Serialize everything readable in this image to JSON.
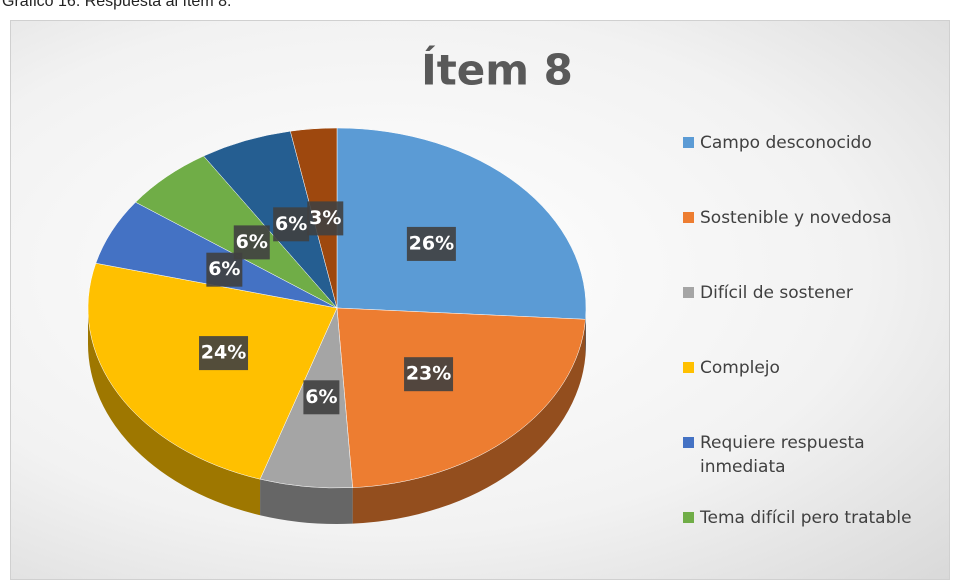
{
  "caption": "Gráfico 16. Respuesta al ítem 8.",
  "chart_data": {
    "type": "pie",
    "title": "Ítem 8",
    "categories": [
      "Campo desconocido",
      "Sostenible y novedosa",
      "Difícil de sostener",
      "Complejo",
      "Requiere respuesta inmediata",
      "Tema difícil pero tratable",
      null,
      null
    ],
    "values": [
      26,
      23,
      6,
      24,
      6,
      6,
      6,
      3
    ],
    "value_labels": [
      "26%",
      "23%",
      "6%",
      "24%",
      "6%",
      "6%",
      "6%",
      "3%"
    ],
    "colors": [
      "#5b9bd5",
      "#ed7d31",
      "#a5a5a5",
      "#ffc000",
      "#4472c4",
      "#70ad47",
      "#255e91",
      "#9e480e"
    ],
    "legend": "right"
  }
}
